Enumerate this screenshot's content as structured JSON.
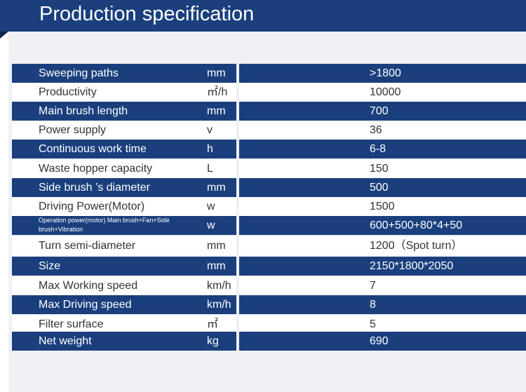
{
  "header": {
    "title": "Production specification"
  },
  "table": {
    "rows": [
      [
        "Sweeping paths",
        "mm",
        ">1800"
      ],
      [
        "Productivity",
        "㎡/h",
        "10000"
      ],
      [
        "Main brush length",
        "mm",
        "700"
      ],
      [
        "Power supply",
        "v",
        "36"
      ],
      [
        "Continuous work time",
        "h",
        "6-8"
      ],
      [
        "Waste hopper capacity",
        "L",
        "150"
      ],
      [
        "Side brush ’s diameter",
        "mm",
        "500"
      ],
      [
        "Driving Power(Motor)",
        "w",
        "1500"
      ],
      [
        "Operation power(motor) Main brush+Fan+Side brush+Vibration",
        "w",
        "600+500+80*4+50"
      ],
      [
        "Turn semi-diameter",
        "mm",
        "1200（Spot turn）"
      ],
      [
        "Size",
        "mm",
        "2150*1800*2050"
      ],
      [
        "Max Working speed",
        "km/h",
        "7"
      ],
      [
        "Max Driving speed",
        "km/h",
        "8"
      ],
      [
        "Filter surface",
        "㎡",
        "5"
      ],
      [
        "Net weight",
        "kg",
        "690"
      ]
    ]
  }
}
